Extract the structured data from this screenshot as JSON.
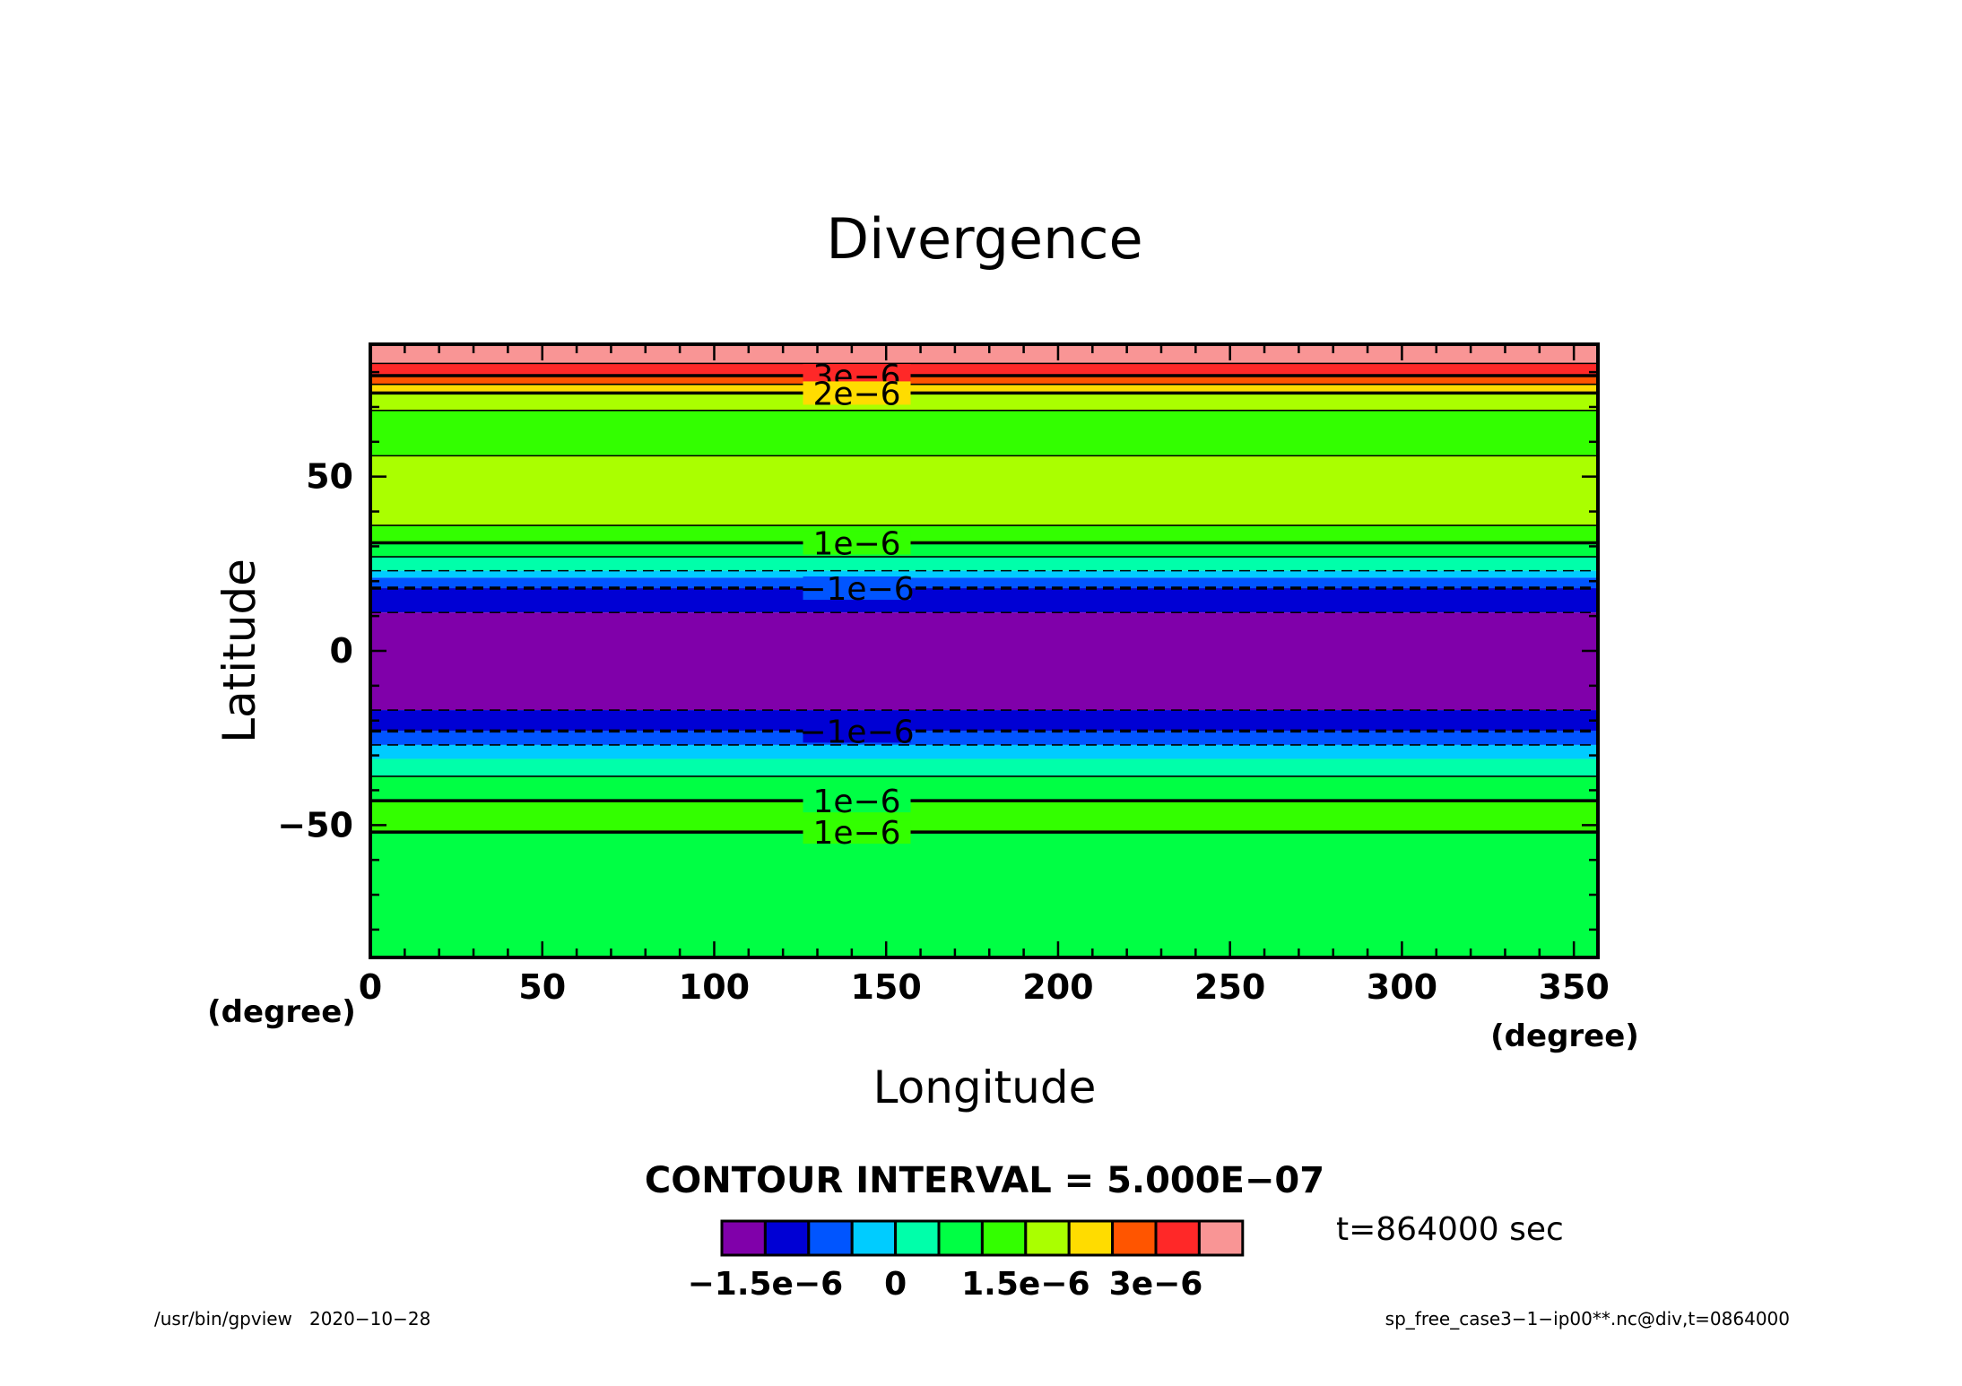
{
  "chart_data": {
    "type": "heatmap",
    "title": "Divergence",
    "xlabel": "Longitude",
    "ylabel": "Latitude",
    "x_unit": "(degree)",
    "y_unit": "(degree)",
    "xlim": [
      0,
      357
    ],
    "ylim": [
      -88,
      88
    ],
    "x_ticks": [
      0,
      50,
      100,
      150,
      200,
      250,
      300,
      350
    ],
    "x_tick_labels": [
      "0",
      "50",
      "100",
      "150",
      "200",
      "250",
      "300",
      "350"
    ],
    "y_ticks": [
      50,
      0,
      -50
    ],
    "y_tick_labels": [
      "50",
      "0",
      "−50"
    ],
    "bands": [
      {
        "lat_min": 82.5,
        "lat_max": 88,
        "color": "#f99595"
      },
      {
        "lat_min": 79,
        "lat_max": 82.5,
        "color": "#ff2828"
      },
      {
        "lat_min": 76.5,
        "lat_max": 79,
        "color": "#ff5500"
      },
      {
        "lat_min": 74,
        "lat_max": 76.5,
        "color": "#ffdc00"
      },
      {
        "lat_min": 69,
        "lat_max": 74,
        "color": "#aaff00"
      },
      {
        "lat_min": 56,
        "lat_max": 69,
        "color": "#33ff00"
      },
      {
        "lat_min": 36,
        "lat_max": 56,
        "color": "#aaff00"
      },
      {
        "lat_min": 31,
        "lat_max": 36,
        "color": "#33ff00"
      },
      {
        "lat_min": 27,
        "lat_max": 31,
        "color": "#00ff44"
      },
      {
        "lat_min": 23,
        "lat_max": 27,
        "color": "#00ffaa"
      },
      {
        "lat_min": 21,
        "lat_max": 23,
        "color": "#00ccff"
      },
      {
        "lat_min": 18,
        "lat_max": 21,
        "color": "#0055ff"
      },
      {
        "lat_min": 11,
        "lat_max": 18,
        "color": "#0000d4"
      },
      {
        "lat_min": -17,
        "lat_max": 11,
        "color": "#8000aa"
      },
      {
        "lat_min": -23,
        "lat_max": -17,
        "color": "#0000d4"
      },
      {
        "lat_min": -27,
        "lat_max": -23,
        "color": "#0055ff"
      },
      {
        "lat_min": -31,
        "lat_max": -27,
        "color": "#00ccff"
      },
      {
        "lat_min": -36,
        "lat_max": -31,
        "color": "#00ffaa"
      },
      {
        "lat_min": -43,
        "lat_max": -36,
        "color": "#00ff44"
      },
      {
        "lat_min": -52,
        "lat_max": -43,
        "color": "#33ff00"
      },
      {
        "lat_min": -88,
        "lat_max": -52,
        "color": "#00ff44"
      }
    ],
    "contours": [
      {
        "lat": 82.5,
        "style": "solid",
        "weight": "thin"
      },
      {
        "lat": 79,
        "style": "solid",
        "weight": "thick"
      },
      {
        "lat": 76.5,
        "style": "solid",
        "weight": "thin"
      },
      {
        "lat": 74,
        "style": "solid",
        "weight": "thick"
      },
      {
        "lat": 69,
        "style": "solid",
        "weight": "thin"
      },
      {
        "lat": 56,
        "style": "solid",
        "weight": "thin"
      },
      {
        "lat": 36,
        "style": "solid",
        "weight": "thin"
      },
      {
        "lat": 31,
        "style": "solid",
        "weight": "thick"
      },
      {
        "lat": 27,
        "style": "solid",
        "weight": "thin"
      },
      {
        "lat": 23,
        "style": "dashed",
        "weight": "thin"
      },
      {
        "lat": 18,
        "style": "dashed",
        "weight": "thick"
      },
      {
        "lat": 11,
        "style": "dashed",
        "weight": "thin"
      },
      {
        "lat": -17,
        "style": "dashed",
        "weight": "thin"
      },
      {
        "lat": -23,
        "style": "dashed",
        "weight": "thick"
      },
      {
        "lat": -27,
        "style": "dashed",
        "weight": "thin"
      },
      {
        "lat": -36,
        "style": "solid",
        "weight": "thin"
      },
      {
        "lat": -43,
        "style": "solid",
        "weight": "thick"
      },
      {
        "lat": -52,
        "style": "solid",
        "weight": "thick"
      }
    ],
    "contour_labels": [
      {
        "text": "3e−6",
        "lat": 79,
        "lon": 130
      },
      {
        "text": "2e−6",
        "lat": 74,
        "lon": 130
      },
      {
        "text": "1e−6",
        "lat": 31,
        "lon": 130
      },
      {
        "text": "−1e−6",
        "lat": 18,
        "lon": 130
      },
      {
        "text": "−1e−6",
        "lat": -23,
        "lon": 130
      },
      {
        "text": "1e−6",
        "lat": -43,
        "lon": 130
      },
      {
        "text": "1e−6",
        "lat": -52,
        "lon": 130
      }
    ],
    "contour_interval_text": "CONTOUR INTERVAL = 5.000E−07",
    "colorbar": {
      "colors": [
        "#8000aa",
        "#0000d4",
        "#0055ff",
        "#00ccff",
        "#00ffaa",
        "#00ff44",
        "#33ff00",
        "#aaff00",
        "#ffdc00",
        "#ff5500",
        "#ff2828",
        "#f99595"
      ],
      "labels": [
        {
          "text": "−1.5e−6",
          "at_box": 1
        },
        {
          "text": "0",
          "at_box": 4
        },
        {
          "text": "1.5e−6",
          "at_box": 7
        },
        {
          "text": "3e−6",
          "at_box": 10
        }
      ]
    },
    "time_label": "t=864000 sec"
  },
  "footer": {
    "left": "/usr/bin/gpview   2020−10−28",
    "right": "sp_free_case3−1−ip00**.nc@div,t=0864000"
  }
}
